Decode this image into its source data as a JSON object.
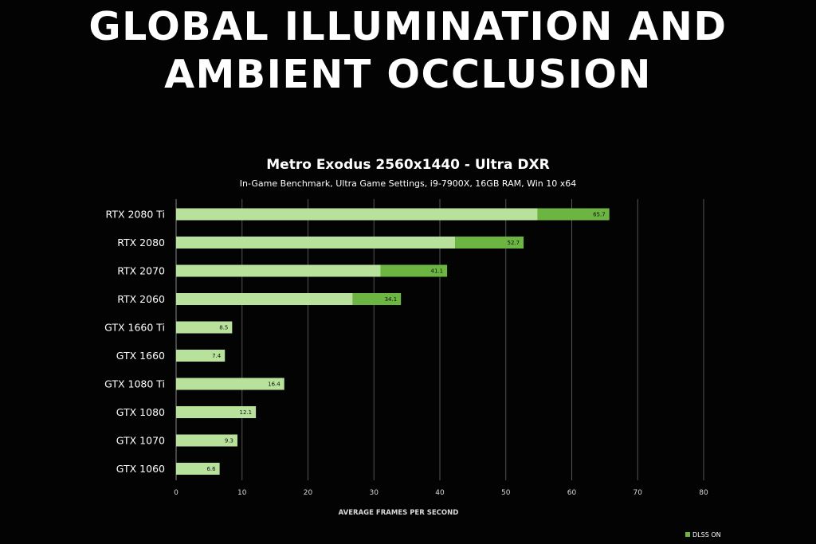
{
  "slide_title": "GLOBAL ILLUMINATION AND\nAMBIENT OCCLUSION",
  "chart_data": {
    "type": "bar",
    "orientation": "horizontal",
    "title": "Metro Exodus 2560x1440 - Ultra DXR",
    "subtitle": "In-Game Benchmark, Ultra Game Settings, i9-7900X, 16GB RAM, Win 10 x64",
    "xlabel": "AVERAGE FRAMES PER SECOND",
    "ylabel": "",
    "xlim": [
      0,
      80
    ],
    "xticks": [
      0,
      10,
      20,
      30,
      40,
      50,
      60,
      70,
      80
    ],
    "grid": "vertical",
    "legend_position": "bottom-right",
    "categories": [
      "RTX 2080 Ti",
      "RTX 2080",
      "RTX 2070",
      "RTX 2060",
      "GTX 1660 Ti",
      "GTX 1660",
      "GTX 1080 Ti",
      "GTX 1080",
      "GTX 1070",
      "GTX 1060"
    ],
    "series": [
      {
        "values": [
          54.8,
          42.3,
          31.0,
          26.8,
          8.5,
          7.4,
          16.4,
          12.1,
          9.3,
          6.6
        ],
        "color": "#b8e19b"
      },
      {
        "name": "DLSS ON",
        "values": [
          65.7,
          52.7,
          41.1,
          34.1,
          null,
          null,
          null,
          null,
          null,
          null
        ],
        "color": "#6db543"
      }
    ],
    "data_labels": [
      "65.7",
      "52.7",
      "41.1",
      "34.1",
      "8.5",
      "7.4",
      "16.4",
      "12.1",
      "9.3",
      "6.6"
    ],
    "colors": {
      "gridline": "#555555",
      "axis": "#888888"
    }
  }
}
